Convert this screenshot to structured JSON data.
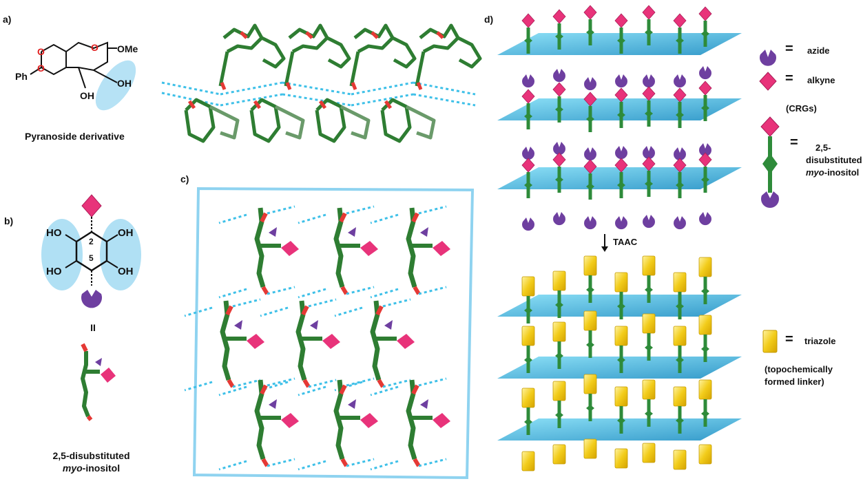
{
  "panels": {
    "a": "a)",
    "b": "b)",
    "c": "c)",
    "d": "d)"
  },
  "panel_a": {
    "caption": "Pyranoside derivative",
    "atoms": {
      "ph": "Ph",
      "o": "O",
      "ome": "OMe",
      "oh": "OH"
    }
  },
  "panel_b": {
    "label_ho": "HO",
    "label_oh": "OH",
    "pos_2": "2",
    "pos_5": "5",
    "compound_number": "II",
    "caption_line1": "2,5-disubstituted",
    "caption_italic": "myo",
    "caption_rest": "-inositol"
  },
  "panel_d": {
    "arrow_label": "TAAC",
    "eq": "=",
    "legend": {
      "azide": "azide",
      "alkyne": "alkyne",
      "crgs": "(CRGs)",
      "inositol_line1": "2,5-",
      "inositol_line2": "disubstituted",
      "inositol_italic": "myo",
      "inositol_rest": "-inositol",
      "triazole": "triazole",
      "triazole_note_line1": "(topochemically",
      "triazole_note_line2": "formed linker)"
    }
  },
  "colors": {
    "plane": "#2fb0dc",
    "hbond": "#3ec0e8",
    "carbon": "#2e7d32",
    "oxygen": "#e53935",
    "alkyne": "#e8337a",
    "azide": "#6e3fa0",
    "triazole": "#f2cc1a"
  }
}
